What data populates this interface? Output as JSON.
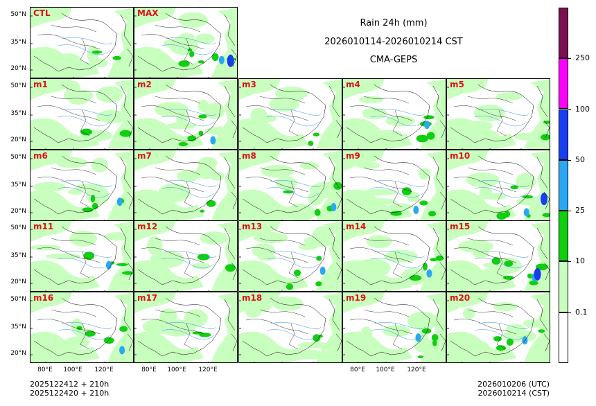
{
  "title": {
    "line1": "Rain 24h (mm)",
    "line2": "2026010114-2026010214 CST",
    "line3": "CMA-GEPS"
  },
  "panels": [
    {
      "label": "CTL",
      "rain": 1
    },
    {
      "label": "MAX",
      "rain": 3
    },
    {
      "label": "m1",
      "rain": 1
    },
    {
      "label": "m2",
      "rain": 2
    },
    {
      "label": "m3",
      "rain": 1
    },
    {
      "label": "m4",
      "rain": 2
    },
    {
      "label": "m5",
      "rain": 1
    },
    {
      "label": "m6",
      "rain": 2
    },
    {
      "label": "m7",
      "rain": 1
    },
    {
      "label": "m8",
      "rain": 2
    },
    {
      "label": "m9",
      "rain": 2
    },
    {
      "label": "m10",
      "rain": 3
    },
    {
      "label": "m11",
      "rain": 2
    },
    {
      "label": "m12",
      "rain": 1
    },
    {
      "label": "m13",
      "rain": 2
    },
    {
      "label": "m14",
      "rain": 2
    },
    {
      "label": "m15",
      "rain": 3
    },
    {
      "label": "m16",
      "rain": 2
    },
    {
      "label": "m17",
      "rain": 1
    },
    {
      "label": "m18",
      "rain": 1
    },
    {
      "label": "m19",
      "rain": 2
    },
    {
      "label": "m20",
      "rain": 2
    }
  ],
  "axes": {
    "lat_labels": [
      "50°N",
      "35°N",
      "20°N"
    ],
    "lon_labels": [
      "80°E",
      "100°E",
      "120°E"
    ]
  },
  "colorbar": {
    "levels": [
      "0.1",
      "10",
      "25",
      "50",
      "100",
      "250"
    ],
    "colors": [
      "#ffffff",
      "#c8ffbe",
      "#0fcf0f",
      "#2aa8f5",
      "#1a3cf2",
      "#ff00ff",
      "#7b0f52"
    ]
  },
  "footer": {
    "left_line1": "2025122412 + 210h",
    "left_line2": "2025122420 + 210h",
    "right_line1": "2026010206 (UTC)",
    "right_line2": "2026010214 (CST)"
  }
}
